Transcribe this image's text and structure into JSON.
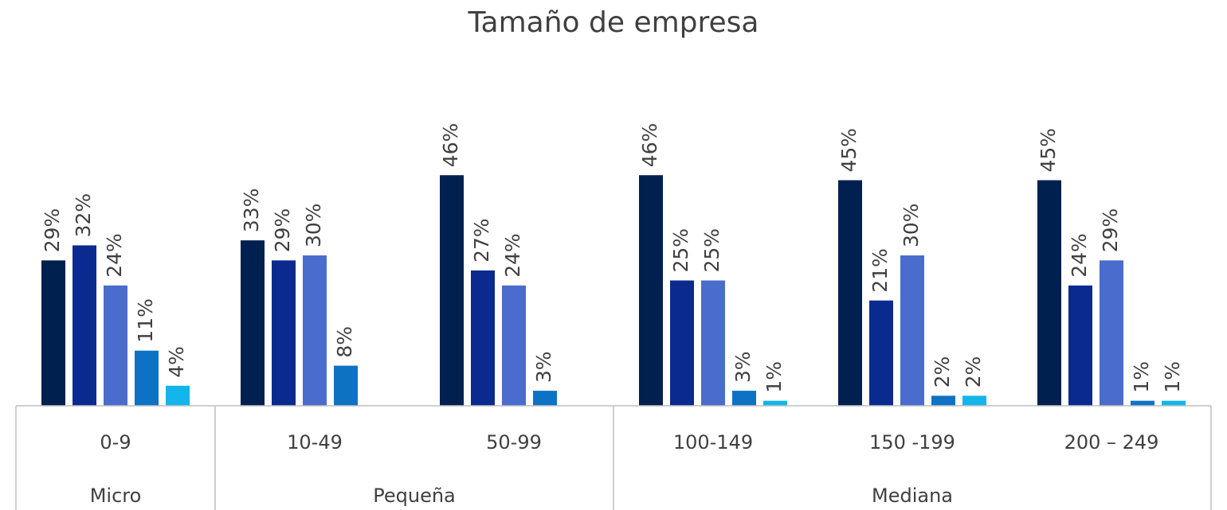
{
  "chart_data": {
    "type": "bar",
    "title": "Tamaño de empresa",
    "categories": [
      "0-9",
      "10-49",
      "50-99",
      "100-149",
      "150 -199",
      "200 – 249"
    ],
    "category_groups": [
      "Micro",
      "Pequeña",
      "Pequeña",
      "Mediana",
      "Mediana",
      "Mediana"
    ],
    "series": [
      {
        "color": "#002050",
        "values": [
          29,
          33,
          46,
          46,
          45,
          45
        ],
        "value_labels": [
          "29%",
          "33%",
          "46%",
          "46%",
          "45%",
          "45%"
        ]
      },
      {
        "color": "#0b2a8f",
        "values": [
          32,
          29,
          27,
          25,
          21,
          24
        ],
        "value_labels": [
          "32%",
          "29%",
          "27%",
          "25%",
          "21%",
          "24%"
        ]
      },
      {
        "color": "#4a6ccc",
        "values": [
          24,
          30,
          24,
          25,
          30,
          29
        ],
        "value_labels": [
          "24%",
          "30%",
          "24%",
          "25%",
          "30%",
          "29%"
        ]
      },
      {
        "color": "#0e72c4",
        "values": [
          11,
          8,
          3,
          3,
          2,
          1
        ],
        "value_labels": [
          "11%",
          "8%",
          "3%",
          "3%",
          "2%",
          "1%"
        ]
      },
      {
        "color": "#13b5ea",
        "values": [
          4,
          null,
          null,
          1,
          2,
          1
        ],
        "value_labels": [
          "4%",
          null,
          null,
          "1%",
          "2%",
          "1%"
        ]
      }
    ],
    "ylim": [
      0,
      50
    ]
  }
}
